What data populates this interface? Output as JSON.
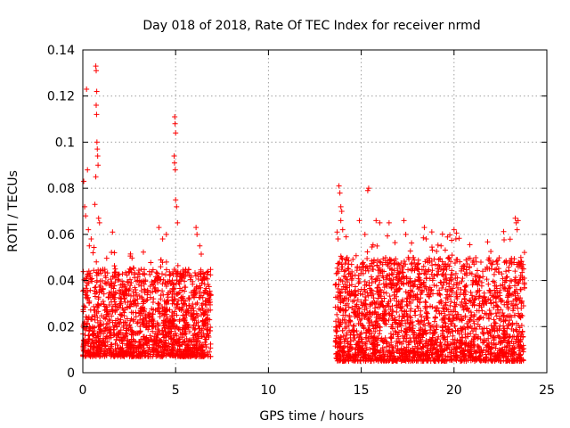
{
  "chart_data": {
    "type": "scatter",
    "title": "Day 018 of 2018, Rate Of TEC Index for receiver nrmd",
    "xlabel": "GPS time / hours",
    "ylabel": "ROTI / TECUs",
    "xlim": [
      0,
      25
    ],
    "ylim": [
      0,
      0.14
    ],
    "x_ticks": [
      0,
      5,
      10,
      15,
      20,
      25
    ],
    "x_tick_labels": [
      "0",
      "5",
      "10",
      "15",
      "20",
      "25"
    ],
    "y_ticks": [
      0,
      0.02,
      0.04,
      0.06,
      0.08,
      0.1,
      0.12,
      0.14
    ],
    "y_tick_labels": [
      "0",
      "0.02",
      "0.04",
      "0.06",
      "0.08",
      "0.1",
      "0.12",
      "0.14"
    ],
    "grid": true,
    "marker": "+",
    "marker_color": "#ff0000",
    "series": [
      {
        "name": "ROTI",
        "segments": [
          {
            "x_range": [
              0.0,
              6.9
            ],
            "y_typical": [
              0.007,
              0.045
            ]
          },
          {
            "x_range": [
              13.6,
              23.8
            ],
            "y_typical": [
              0.005,
              0.05
            ]
          }
        ],
        "outliers": [
          {
            "x": 0.05,
            "y": 0.083
          },
          {
            "x": 0.1,
            "y": 0.072
          },
          {
            "x": 0.15,
            "y": 0.068
          },
          {
            "x": 0.2,
            "y": 0.123
          },
          {
            "x": 0.25,
            "y": 0.088
          },
          {
            "x": 0.3,
            "y": 0.062
          },
          {
            "x": 0.35,
            "y": 0.055
          },
          {
            "x": 0.45,
            "y": 0.058
          },
          {
            "x": 0.55,
            "y": 0.052
          },
          {
            "x": 0.7,
            "y": 0.133
          },
          {
            "x": 0.72,
            "y": 0.131
          },
          {
            "x": 0.75,
            "y": 0.122
          },
          {
            "x": 0.72,
            "y": 0.116
          },
          {
            "x": 0.74,
            "y": 0.112
          },
          {
            "x": 0.76,
            "y": 0.1
          },
          {
            "x": 0.78,
            "y": 0.097
          },
          {
            "x": 0.8,
            "y": 0.094
          },
          {
            "x": 0.82,
            "y": 0.09
          },
          {
            "x": 0.7,
            "y": 0.085
          },
          {
            "x": 0.65,
            "y": 0.073
          },
          {
            "x": 0.85,
            "y": 0.067
          },
          {
            "x": 0.9,
            "y": 0.065
          },
          {
            "x": 1.6,
            "y": 0.061
          },
          {
            "x": 1.7,
            "y": 0.052
          },
          {
            "x": 4.1,
            "y": 0.063
          },
          {
            "x": 4.3,
            "y": 0.058
          },
          {
            "x": 4.5,
            "y": 0.06
          },
          {
            "x": 4.95,
            "y": 0.111
          },
          {
            "x": 4.97,
            "y": 0.108
          },
          {
            "x": 5.0,
            "y": 0.104
          },
          {
            "x": 4.92,
            "y": 0.094
          },
          {
            "x": 4.94,
            "y": 0.091
          },
          {
            "x": 4.98,
            "y": 0.088
          },
          {
            "x": 5.0,
            "y": 0.075
          },
          {
            "x": 5.05,
            "y": 0.072
          },
          {
            "x": 5.1,
            "y": 0.065
          },
          {
            "x": 6.1,
            "y": 0.063
          },
          {
            "x": 6.15,
            "y": 0.06
          },
          {
            "x": 6.3,
            "y": 0.055
          },
          {
            "x": 13.7,
            "y": 0.061
          },
          {
            "x": 13.75,
            "y": 0.058
          },
          {
            "x": 13.8,
            "y": 0.081
          },
          {
            "x": 13.85,
            "y": 0.078
          },
          {
            "x": 13.9,
            "y": 0.072
          },
          {
            "x": 13.95,
            "y": 0.07
          },
          {
            "x": 13.9,
            "y": 0.066
          },
          {
            "x": 14.0,
            "y": 0.062
          },
          {
            "x": 14.9,
            "y": 0.066
          },
          {
            "x": 15.2,
            "y": 0.06
          },
          {
            "x": 15.35,
            "y": 0.079
          },
          {
            "x": 15.4,
            "y": 0.08
          },
          {
            "x": 15.8,
            "y": 0.066
          },
          {
            "x": 16.0,
            "y": 0.065
          },
          {
            "x": 16.5,
            "y": 0.065
          },
          {
            "x": 17.3,
            "y": 0.066
          },
          {
            "x": 17.4,
            "y": 0.06
          },
          {
            "x": 18.4,
            "y": 0.063
          },
          {
            "x": 18.5,
            "y": 0.058
          },
          {
            "x": 19.3,
            "y": 0.055
          },
          {
            "x": 20.0,
            "y": 0.062
          },
          {
            "x": 20.1,
            "y": 0.058
          },
          {
            "x": 21.9,
            "y": 0.045
          },
          {
            "x": 23.3,
            "y": 0.067
          },
          {
            "x": 23.35,
            "y": 0.065
          },
          {
            "x": 23.4,
            "y": 0.062
          },
          {
            "x": 23.45,
            "y": 0.066
          },
          {
            "x": 23.6,
            "y": 0.05
          },
          {
            "x": 23.75,
            "y": 0.045
          }
        ]
      }
    ]
  }
}
